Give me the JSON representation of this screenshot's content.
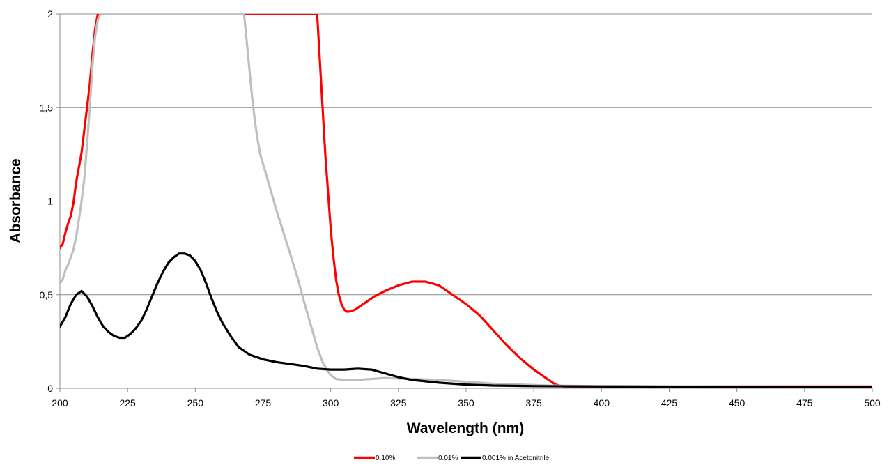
{
  "chart_data": {
    "type": "line",
    "title": "",
    "xlabel": "Wavelength (nm)",
    "ylabel": "Absorbance",
    "xlim": [
      200,
      500
    ],
    "ylim": [
      0,
      2
    ],
    "x_ticks": [
      200,
      225,
      250,
      275,
      300,
      325,
      350,
      375,
      400,
      425,
      450,
      475,
      500
    ],
    "x_tick_labels": [
      "200",
      "225",
      "250",
      "275",
      "300",
      "325",
      "350",
      "375",
      "400",
      "425",
      "450",
      "475",
      "500"
    ],
    "y_ticks": [
      0,
      0.5,
      1,
      1.5,
      2
    ],
    "y_tick_labels": [
      "0",
      "0,5",
      "1",
      "1,5",
      "2"
    ],
    "grid": "horizontal",
    "legend_position": "bottom",
    "series": [
      {
        "name": "0.10%",
        "color": "#ff0000",
        "x": [
          200,
          201,
          202,
          203,
          204,
          205,
          206,
          207,
          208,
          209,
          210,
          211,
          212,
          213,
          214,
          295,
          296,
          297,
          298,
          299,
          300,
          301,
          302,
          303,
          304,
          305,
          306,
          307,
          309,
          312,
          316,
          320,
          325,
          330,
          335,
          340,
          345,
          350,
          355,
          360,
          365,
          370,
          375,
          380,
          383,
          386,
          390,
          400,
          450,
          500
        ],
        "y": [
          0.75,
          0.77,
          0.83,
          0.88,
          0.92,
          0.99,
          1.1,
          1.18,
          1.26,
          1.38,
          1.5,
          1.62,
          1.78,
          1.92,
          2.0,
          2.0,
          1.75,
          1.5,
          1.25,
          1.05,
          0.85,
          0.7,
          0.58,
          0.5,
          0.45,
          0.42,
          0.41,
          0.41,
          0.42,
          0.45,
          0.49,
          0.52,
          0.55,
          0.57,
          0.57,
          0.55,
          0.5,
          0.45,
          0.39,
          0.31,
          0.23,
          0.16,
          0.1,
          0.05,
          0.02,
          0.01,
          0.01,
          0.01,
          0.01,
          0.01
        ]
      },
      {
        "name": "0.01%",
        "color": "#bfbfbf",
        "x": [
          200,
          201,
          202,
          203,
          204,
          205,
          206,
          207,
          208,
          209,
          210,
          211,
          212,
          213,
          214,
          215,
          268,
          269,
          270,
          271,
          272,
          273,
          274,
          275,
          278,
          280,
          285,
          288,
          290,
          293,
          295,
          297,
          299,
          300,
          302,
          305,
          310,
          320,
          330,
          340,
          350,
          360,
          370,
          380,
          400,
          450,
          500
        ],
        "y": [
          0.56,
          0.58,
          0.63,
          0.66,
          0.7,
          0.74,
          0.81,
          0.9,
          1.0,
          1.12,
          1.3,
          1.5,
          1.72,
          1.88,
          1.97,
          2.0,
          2.0,
          1.85,
          1.7,
          1.55,
          1.43,
          1.33,
          1.25,
          1.2,
          1.05,
          0.95,
          0.72,
          0.58,
          0.47,
          0.32,
          0.22,
          0.14,
          0.09,
          0.07,
          0.05,
          0.045,
          0.045,
          0.055,
          0.05,
          0.045,
          0.035,
          0.025,
          0.02,
          0.015,
          0.012,
          0.01,
          0.008
        ]
      },
      {
        "name": "0.001% in Acetonitrile",
        "color": "#000000",
        "x": [
          200,
          202,
          204,
          206,
          208,
          210,
          212,
          214,
          216,
          218,
          220,
          222,
          224,
          226,
          228,
          230,
          232,
          234,
          236,
          238,
          240,
          242,
          244,
          246,
          248,
          250,
          252,
          254,
          256,
          258,
          260,
          263,
          266,
          270,
          275,
          280,
          285,
          290,
          295,
          300,
          305,
          310,
          315,
          320,
          325,
          330,
          340,
          350,
          360,
          375,
          400,
          450,
          500
        ],
        "y": [
          0.33,
          0.38,
          0.45,
          0.5,
          0.52,
          0.49,
          0.44,
          0.38,
          0.33,
          0.3,
          0.28,
          0.27,
          0.27,
          0.29,
          0.32,
          0.36,
          0.42,
          0.49,
          0.56,
          0.62,
          0.67,
          0.7,
          0.72,
          0.72,
          0.71,
          0.68,
          0.63,
          0.56,
          0.48,
          0.41,
          0.35,
          0.28,
          0.22,
          0.18,
          0.155,
          0.14,
          0.13,
          0.12,
          0.105,
          0.1,
          0.1,
          0.105,
          0.1,
          0.08,
          0.06,
          0.045,
          0.03,
          0.02,
          0.015,
          0.012,
          0.01,
          0.008,
          0.007
        ]
      }
    ]
  }
}
